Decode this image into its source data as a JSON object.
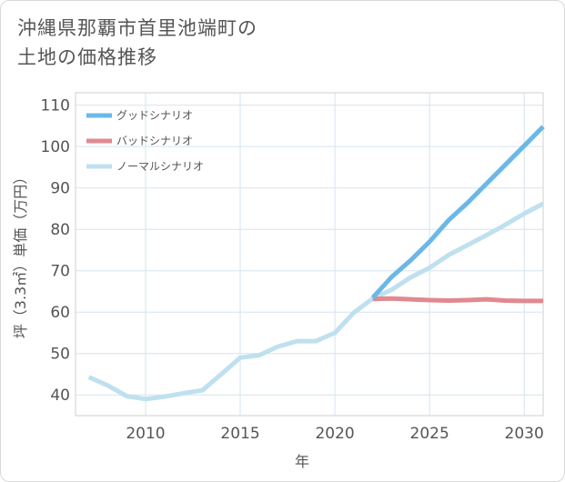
{
  "title_line1": "沖縄県那覇市首里池端町の",
  "title_line2": "土地の価格推移",
  "chart_data": {
    "type": "line",
    "xlabel": "年",
    "ylabel": "坪（3.3㎡）単価（万円）",
    "xlim": [
      2006.3,
      2031
    ],
    "ylim": [
      35,
      113
    ],
    "xticks": [
      2010,
      2015,
      2020,
      2025,
      2030
    ],
    "yticks": [
      40,
      50,
      60,
      70,
      80,
      90,
      100,
      110
    ],
    "grid": true,
    "legend_position": "top-left",
    "series": [
      {
        "name": "グッドシナリオ",
        "color": "#6bb8e8",
        "x": [
          2022,
          2023,
          2024,
          2025,
          2026,
          2027,
          2028,
          2029,
          2030,
          2031
        ],
        "y": [
          63.5,
          68.5,
          72.5,
          77,
          82.2,
          86.4,
          91,
          95.6,
          100.2,
          104.8
        ]
      },
      {
        "name": "バッドシナリオ",
        "color": "#e08a90",
        "x": [
          2022,
          2023,
          2024,
          2025,
          2026,
          2027,
          2028,
          2029,
          2030,
          2031
        ],
        "y": [
          63.2,
          63.3,
          63.1,
          62.9,
          62.8,
          62.9,
          63.1,
          62.8,
          62.7,
          62.7
        ]
      },
      {
        "name": "ノーマルシナリオ",
        "color": "#bfe0ef",
        "x": [
          2007,
          2008,
          2009,
          2010,
          2011,
          2012,
          2013,
          2014,
          2015,
          2016,
          2017,
          2018,
          2019,
          2020,
          2021,
          2022,
          2023,
          2024,
          2025,
          2026,
          2027,
          2028,
          2029,
          2030,
          2031
        ],
        "y": [
          44.3,
          42.3,
          39.7,
          39.0,
          39.6,
          40.4,
          41.1,
          45.0,
          49.0,
          49.6,
          51.7,
          53.0,
          53.0,
          55.0,
          59.9,
          63.3,
          65.4,
          68.4,
          70.7,
          73.8,
          76.2,
          78.6,
          81.1,
          83.8,
          86.2
        ]
      }
    ]
  }
}
